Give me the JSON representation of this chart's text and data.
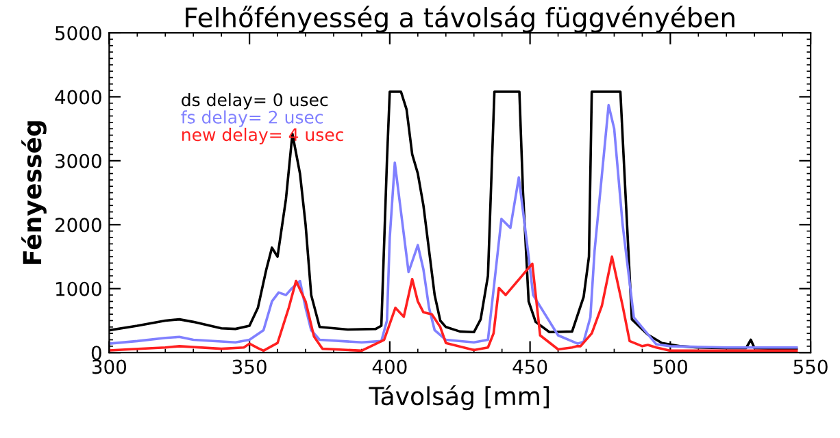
{
  "chart_data": {
    "type": "line",
    "title": "Felhőfényesség a távolság függvényében",
    "xlabel": "Távolság [mm]",
    "ylabel": "Fényesség",
    "xlim": [
      300,
      550
    ],
    "xticks": [
      300,
      350,
      400,
      450,
      500,
      550
    ],
    "ylim": [
      0,
      5000
    ],
    "yticks": [
      0,
      1000,
      2000,
      3000,
      4000,
      5000
    ],
    "grid": false,
    "legend": "top left",
    "marker": "none",
    "line_style": "solid",
    "series": [
      {
        "name": "ds delay= 0 usec",
        "color": "#000000",
        "x": [
          300,
          310,
          320,
          325,
          330,
          340,
          345,
          350,
          353,
          356,
          358,
          360,
          363,
          365.3,
          368,
          370,
          372,
          375,
          385,
          395,
          397,
          399,
          400,
          404,
          406,
          408,
          410,
          412,
          414,
          416,
          418,
          420,
          425,
          430,
          432.4,
          435,
          437.3,
          446.2,
          447.5,
          449.5,
          452,
          456.9,
          465,
          469.1,
          471,
          472,
          482.2,
          484,
          486.3,
          492,
          497,
          503.4,
          510,
          520,
          527,
          528.7,
          530,
          540,
          545
        ],
        "values": [
          350,
          420,
          500,
          520,
          480,
          380,
          370,
          420,
          700,
          1300,
          1640,
          1500,
          2400,
          3420,
          2800,
          2000,
          900,
          400,
          360,
          370,
          420,
          3000,
          4080,
          4080,
          3800,
          3100,
          2800,
          2300,
          1600,
          900,
          500,
          400,
          330,
          320,
          520,
          1200,
          4080,
          4080,
          2500,
          800,
          480,
          320,
          330,
          870,
          1500,
          4080,
          4080,
          2500,
          520,
          280,
          150,
          100,
          80,
          70,
          70,
          200,
          70,
          60,
          60
        ]
      },
      {
        "name": "fs delay= 2 usec",
        "color": "#8080ff",
        "x": [
          300,
          310,
          320,
          325,
          330,
          345,
          350,
          355,
          358,
          360.4,
          363,
          365,
          368,
          370,
          372,
          375,
          390,
          397,
          399,
          400,
          401.8,
          404,
          406.7,
          410,
          412,
          414,
          416,
          420,
          430,
          435,
          437.3,
          439.8,
          443,
          446,
          449.5,
          451.1,
          460,
          467,
          469.1,
          471.5,
          473,
          476.1,
          478,
          480,
          483,
          487,
          495,
          500,
          520,
          545
        ],
        "values": [
          140,
          180,
          230,
          245,
          200,
          160,
          200,
          350,
          800,
          940,
          900,
          1000,
          1120,
          700,
          350,
          200,
          160,
          180,
          500,
          1800,
          2970,
          2200,
          1260,
          1680,
          1300,
          700,
          350,
          200,
          160,
          200,
          1100,
          2090,
          1950,
          2740,
          1500,
          900,
          270,
          140,
          170,
          550,
          1590,
          3000,
          3870,
          3500,
          2000,
          550,
          130,
          100,
          80,
          80
        ]
      },
      {
        "name": "new delay= 4 usec",
        "color": "#ff2020",
        "x": [
          300,
          320,
          325,
          340,
          348,
          350,
          353,
          355,
          360,
          364,
          366.6,
          370,
          373,
          376,
          390,
          398,
          402,
          405,
          408,
          410,
          412,
          415,
          418,
          420,
          430,
          435,
          437,
          438.9,
          441.3,
          450.8,
          453.6,
          460,
          465,
          466.8,
          468,
          472,
          475.6,
          479.2,
          483,
          485.5,
          490,
          492,
          495,
          500,
          545
        ],
        "values": [
          35,
          80,
          100,
          60,
          80,
          140,
          70,
          30,
          150,
          700,
          1120,
          800,
          250,
          60,
          30,
          200,
          700,
          560,
          1150,
          800,
          630,
          600,
          400,
          150,
          40,
          80,
          300,
          1010,
          900,
          1390,
          270,
          50,
          80,
          100,
          100,
          300,
          730,
          1500,
          730,
          180,
          100,
          120,
          80,
          30,
          30
        ]
      }
    ]
  }
}
